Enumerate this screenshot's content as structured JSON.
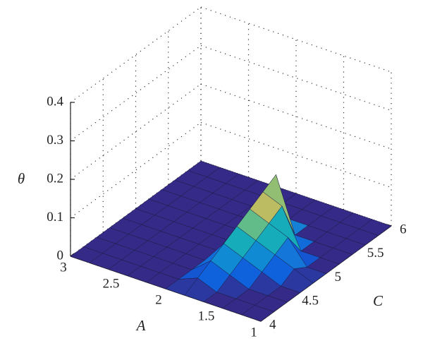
{
  "chart_data": {
    "type": "surface",
    "xlabel": "A",
    "ylabel": "C",
    "zlabel": "θ",
    "x": [
      1,
      1.2,
      1.4,
      1.6,
      1.8,
      2,
      2.2,
      2.4,
      2.6,
      2.8,
      3
    ],
    "y": [
      4,
      4.2,
      4.4,
      4.6,
      4.8,
      5,
      5.2,
      5.4,
      5.6,
      5.8,
      6
    ],
    "z": [
      [
        0,
        0,
        0,
        0,
        0,
        0,
        0,
        0,
        0,
        0,
        0
      ],
      [
        0,
        0,
        0,
        0,
        0.02,
        0,
        0,
        0,
        0,
        0,
        0
      ],
      [
        0,
        0,
        0,
        0.02,
        0.04,
        0.06,
        0,
        0,
        0,
        0,
        0
      ],
      [
        0,
        0,
        0.02,
        0.04,
        0.06,
        0.08,
        0.1,
        0,
        0,
        0,
        0
      ],
      [
        0,
        0.02,
        0.04,
        0.06,
        0.08,
        0.1,
        0.12,
        0.14,
        0,
        0,
        0
      ],
      [
        0,
        0,
        0,
        0,
        0,
        0,
        0,
        0,
        0,
        0,
        0
      ],
      [
        0,
        0,
        0,
        0,
        0,
        0,
        0,
        0,
        0,
        0,
        0
      ],
      [
        0,
        0,
        0,
        0,
        0,
        0,
        0,
        0,
        0,
        0,
        0
      ],
      [
        0,
        0,
        0,
        0,
        0,
        0,
        0,
        0,
        0,
        0,
        0
      ],
      [
        0,
        0,
        0,
        0,
        0,
        0,
        0,
        0,
        0,
        0,
        0
      ],
      [
        0,
        0,
        0,
        0,
        0,
        0,
        0,
        0,
        0,
        0,
        0
      ]
    ],
    "xlim": [
      1,
      3
    ],
    "ylim": [
      4,
      6
    ],
    "zlim": [
      0,
      0.4
    ],
    "xticks": [
      1,
      1.5,
      2,
      2.5,
      3
    ],
    "yticks": [
      4,
      4.5,
      5,
      5.5,
      6
    ],
    "zticks": [
      0,
      0.1,
      0.2,
      0.3,
      0.4
    ],
    "grid": true,
    "colormap": [
      "#352a87",
      "#0f5cdd",
      "#1481d6",
      "#06a4ca",
      "#2eb7a4",
      "#87bf77",
      "#d1bb59",
      "#fec832",
      "#f9fb0e"
    ]
  }
}
